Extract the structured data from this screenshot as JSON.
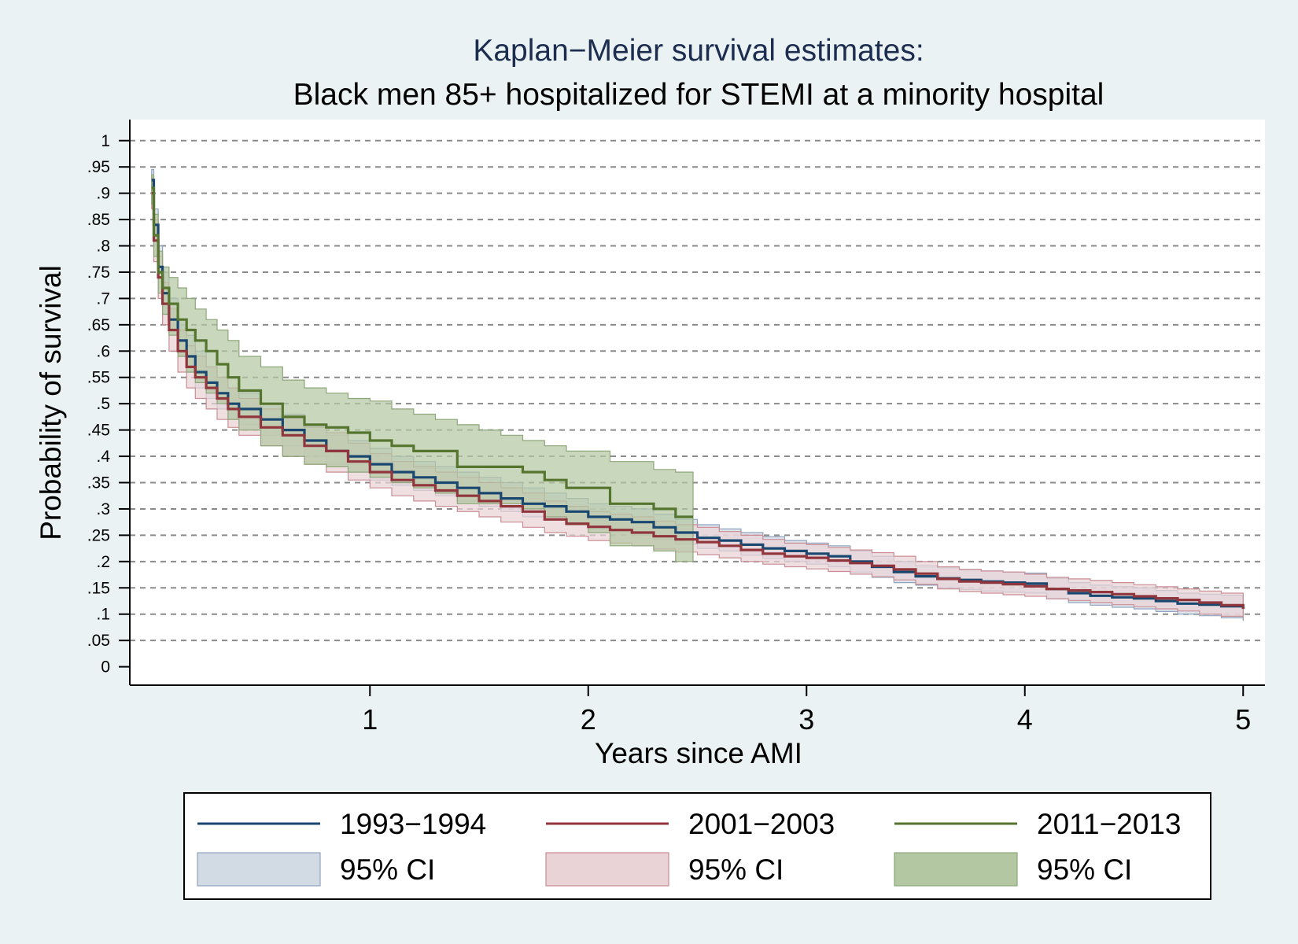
{
  "chart_data": {
    "type": "line",
    "title": "Kaplan−Meier survival estimates:",
    "subtitle": "Black men 85+ hospitalized for STEMI at a minority hospital",
    "xlabel": "Years since AMI",
    "ylabel": "Probability of survival",
    "xlim": [
      -0.1,
      5.1
    ],
    "ylim": [
      -0.035,
      1.04
    ],
    "xticks": [
      1,
      2,
      3,
      4,
      5
    ],
    "xtick_labels": [
      "1",
      "2",
      "3",
      "4",
      "5"
    ],
    "yticks": [
      0,
      0.05,
      0.1,
      0.15,
      0.2,
      0.25,
      0.3,
      0.35,
      0.4,
      0.45,
      0.5,
      0.55,
      0.6,
      0.65,
      0.7,
      0.75,
      0.8,
      0.85,
      0.9,
      0.95,
      1
    ],
    "ytick_labels": [
      "0",
      ".05",
      ".1",
      ".15",
      ".2",
      ".25",
      ".3",
      ".35",
      ".4",
      ".45",
      ".5",
      ".55",
      ".6",
      ".65",
      ".7",
      ".75",
      ".8",
      ".85",
      ".9",
      ".95",
      "1"
    ],
    "gridlines": "dashed horizontal at y ticks",
    "legend_position": "bottom",
    "series": [
      {
        "name": "1993−1994",
        "color": "#1a476f",
        "ci_label": "95% CI",
        "ci_fill": "#d2dae4",
        "ci_stroke": "#8fa4bf",
        "x": [
          0,
          0.01,
          0.03,
          0.05,
          0.08,
          0.12,
          0.16,
          0.2,
          0.25,
          0.3,
          0.35,
          0.4,
          0.5,
          0.6,
          0.7,
          0.8,
          0.9,
          1.0,
          1.1,
          1.2,
          1.3,
          1.4,
          1.5,
          1.6,
          1.7,
          1.8,
          1.9,
          2.0,
          2.1,
          2.2,
          2.3,
          2.4,
          2.5,
          2.6,
          2.7,
          2.8,
          2.9,
          3.0,
          3.1,
          3.2,
          3.3,
          3.4,
          3.5,
          3.6,
          3.7,
          3.8,
          3.9,
          4.0,
          4.1,
          4.2,
          4.3,
          4.4,
          4.5,
          4.6,
          4.7,
          4.8,
          4.9,
          5.0
        ],
        "y": [
          0.925,
          0.84,
          0.76,
          0.71,
          0.66,
          0.62,
          0.59,
          0.56,
          0.54,
          0.52,
          0.5,
          0.49,
          0.47,
          0.45,
          0.43,
          0.41,
          0.4,
          0.385,
          0.37,
          0.36,
          0.35,
          0.34,
          0.33,
          0.32,
          0.31,
          0.305,
          0.295,
          0.285,
          0.28,
          0.275,
          0.265,
          0.255,
          0.245,
          0.24,
          0.232,
          0.225,
          0.22,
          0.215,
          0.21,
          0.2,
          0.19,
          0.18,
          0.172,
          0.168,
          0.165,
          0.162,
          0.16,
          0.158,
          0.148,
          0.14,
          0.135,
          0.132,
          0.13,
          0.125,
          0.12,
          0.118,
          0.115,
          0.11
        ],
        "ci_lower": [
          0.9,
          0.8,
          0.72,
          0.67,
          0.63,
          0.59,
          0.56,
          0.53,
          0.51,
          0.49,
          0.47,
          0.46,
          0.44,
          0.42,
          0.4,
          0.385,
          0.37,
          0.355,
          0.345,
          0.335,
          0.325,
          0.315,
          0.305,
          0.295,
          0.285,
          0.28,
          0.27,
          0.262,
          0.256,
          0.25,
          0.242,
          0.233,
          0.225,
          0.22,
          0.212,
          0.206,
          0.2,
          0.195,
          0.19,
          0.18,
          0.17,
          0.16,
          0.155,
          0.15,
          0.147,
          0.144,
          0.142,
          0.14,
          0.13,
          0.122,
          0.117,
          0.113,
          0.11,
          0.105,
          0.1,
          0.097,
          0.093,
          0.087
        ],
        "ci_upper": [
          0.945,
          0.87,
          0.8,
          0.75,
          0.7,
          0.66,
          0.63,
          0.6,
          0.57,
          0.55,
          0.53,
          0.52,
          0.5,
          0.48,
          0.46,
          0.44,
          0.43,
          0.415,
          0.4,
          0.39,
          0.38,
          0.37,
          0.36,
          0.35,
          0.34,
          0.33,
          0.32,
          0.31,
          0.305,
          0.3,
          0.29,
          0.28,
          0.27,
          0.262,
          0.255,
          0.247,
          0.24,
          0.235,
          0.23,
          0.22,
          0.21,
          0.2,
          0.192,
          0.188,
          0.185,
          0.182,
          0.18,
          0.178,
          0.168,
          0.16,
          0.155,
          0.152,
          0.15,
          0.145,
          0.14,
          0.138,
          0.136,
          0.133
        ]
      },
      {
        "name": "2001−2003",
        "color": "#90353b",
        "ci_label": "95% CI",
        "ci_fill": "#e9d3d6",
        "ci_stroke": "#c98d94",
        "x": [
          0,
          0.01,
          0.03,
          0.05,
          0.08,
          0.12,
          0.16,
          0.2,
          0.25,
          0.3,
          0.35,
          0.4,
          0.5,
          0.6,
          0.7,
          0.8,
          0.9,
          1.0,
          1.1,
          1.2,
          1.3,
          1.4,
          1.5,
          1.6,
          1.7,
          1.8,
          1.9,
          2.0,
          2.1,
          2.2,
          2.3,
          2.4,
          2.5,
          2.6,
          2.7,
          2.8,
          2.9,
          3.0,
          3.1,
          3.2,
          3.3,
          3.4,
          3.5,
          3.6,
          3.7,
          3.8,
          3.9,
          4.0,
          4.1,
          4.2,
          4.3,
          4.4,
          4.5,
          4.6,
          4.7,
          4.8,
          4.9,
          5.0
        ],
        "y": [
          0.9,
          0.81,
          0.74,
          0.69,
          0.64,
          0.6,
          0.57,
          0.55,
          0.53,
          0.51,
          0.49,
          0.475,
          0.455,
          0.44,
          0.42,
          0.41,
          0.39,
          0.37,
          0.355,
          0.345,
          0.335,
          0.325,
          0.315,
          0.305,
          0.295,
          0.28,
          0.272,
          0.266,
          0.26,
          0.255,
          0.248,
          0.242,
          0.237,
          0.23,
          0.222,
          0.215,
          0.21,
          0.207,
          0.202,
          0.197,
          0.192,
          0.185,
          0.177,
          0.167,
          0.162,
          0.16,
          0.157,
          0.153,
          0.148,
          0.145,
          0.142,
          0.138,
          0.134,
          0.13,
          0.127,
          0.122,
          0.117,
          0.11
        ],
        "ci_lower": [
          0.87,
          0.77,
          0.7,
          0.65,
          0.6,
          0.56,
          0.53,
          0.51,
          0.49,
          0.47,
          0.455,
          0.44,
          0.42,
          0.4,
          0.385,
          0.37,
          0.355,
          0.34,
          0.325,
          0.315,
          0.305,
          0.295,
          0.285,
          0.275,
          0.265,
          0.255,
          0.248,
          0.24,
          0.235,
          0.23,
          0.224,
          0.218,
          0.213,
          0.207,
          0.2,
          0.195,
          0.19,
          0.186,
          0.181,
          0.176,
          0.171,
          0.165,
          0.157,
          0.148,
          0.143,
          0.14,
          0.137,
          0.134,
          0.129,
          0.126,
          0.122,
          0.118,
          0.114,
          0.11,
          0.106,
          0.1,
          0.096,
          0.09
        ],
        "ci_upper": [
          0.93,
          0.85,
          0.78,
          0.73,
          0.68,
          0.64,
          0.61,
          0.59,
          0.57,
          0.55,
          0.53,
          0.51,
          0.49,
          0.475,
          0.455,
          0.445,
          0.425,
          0.405,
          0.39,
          0.38,
          0.37,
          0.36,
          0.35,
          0.34,
          0.33,
          0.315,
          0.305,
          0.295,
          0.29,
          0.285,
          0.277,
          0.27,
          0.265,
          0.257,
          0.25,
          0.242,
          0.235,
          0.232,
          0.227,
          0.222,
          0.217,
          0.21,
          0.2,
          0.19,
          0.185,
          0.182,
          0.18,
          0.176,
          0.17,
          0.167,
          0.164,
          0.16,
          0.156,
          0.152,
          0.148,
          0.144,
          0.14,
          0.135
        ]
      },
      {
        "name": "2011−2013",
        "color": "#55752f",
        "ci_label": "95% CI",
        "ci_fill": "#b4c7a3",
        "ci_stroke": "#8ea67a",
        "x": [
          0,
          0.01,
          0.03,
          0.05,
          0.08,
          0.12,
          0.16,
          0.2,
          0.25,
          0.3,
          0.35,
          0.4,
          0.5,
          0.6,
          0.7,
          0.8,
          0.9,
          1.0,
          1.1,
          1.2,
          1.3,
          1.4,
          1.5,
          1.6,
          1.7,
          1.8,
          1.9,
          2.0,
          2.1,
          2.2,
          2.3,
          2.4,
          2.48
        ],
        "y": [
          0.91,
          0.82,
          0.75,
          0.72,
          0.69,
          0.66,
          0.64,
          0.62,
          0.6,
          0.575,
          0.55,
          0.525,
          0.5,
          0.475,
          0.46,
          0.455,
          0.445,
          0.43,
          0.42,
          0.41,
          0.41,
          0.38,
          0.38,
          0.38,
          0.37,
          0.355,
          0.34,
          0.34,
          0.31,
          0.31,
          0.3,
          0.285,
          0.285
        ],
        "ci_lower": [
          0.88,
          0.78,
          0.71,
          0.67,
          0.63,
          0.59,
          0.56,
          0.54,
          0.52,
          0.5,
          0.47,
          0.45,
          0.42,
          0.4,
          0.385,
          0.38,
          0.37,
          0.36,
          0.35,
          0.34,
          0.33,
          0.31,
          0.31,
          0.31,
          0.3,
          0.285,
          0.27,
          0.255,
          0.23,
          0.23,
          0.22,
          0.2,
          0.2
        ],
        "ci_upper": [
          0.935,
          0.86,
          0.79,
          0.76,
          0.74,
          0.72,
          0.7,
          0.68,
          0.66,
          0.64,
          0.62,
          0.59,
          0.57,
          0.545,
          0.53,
          0.52,
          0.51,
          0.505,
          0.49,
          0.48,
          0.47,
          0.46,
          0.45,
          0.44,
          0.43,
          0.42,
          0.41,
          0.41,
          0.39,
          0.39,
          0.375,
          0.37,
          0.37
        ]
      }
    ]
  }
}
